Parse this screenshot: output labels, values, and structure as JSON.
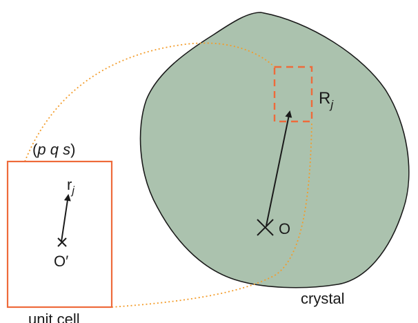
{
  "labels": {
    "crystal": "crystal",
    "unit_cell": "unit cell",
    "pqs_open": "(",
    "pqs_p": "p",
    "pqs_q": "q",
    "pqs_s": "s",
    "pqs_close": ")",
    "R_base": "R",
    "R_sub": "j",
    "r_base": "r",
    "r_sub": "j",
    "origin": "O",
    "origin_prime": "O′"
  },
  "colors": {
    "crystal_fill": "#abc2ae",
    "crystal_outline": "#1a1a1a",
    "unit_cell_outline": "#ee6a3a",
    "connector": "#f39c2a",
    "arrow": "#1a1a1a"
  },
  "icons": {
    "origin_marker": "cross-icon",
    "origin_prime_marker": "cross-icon"
  }
}
